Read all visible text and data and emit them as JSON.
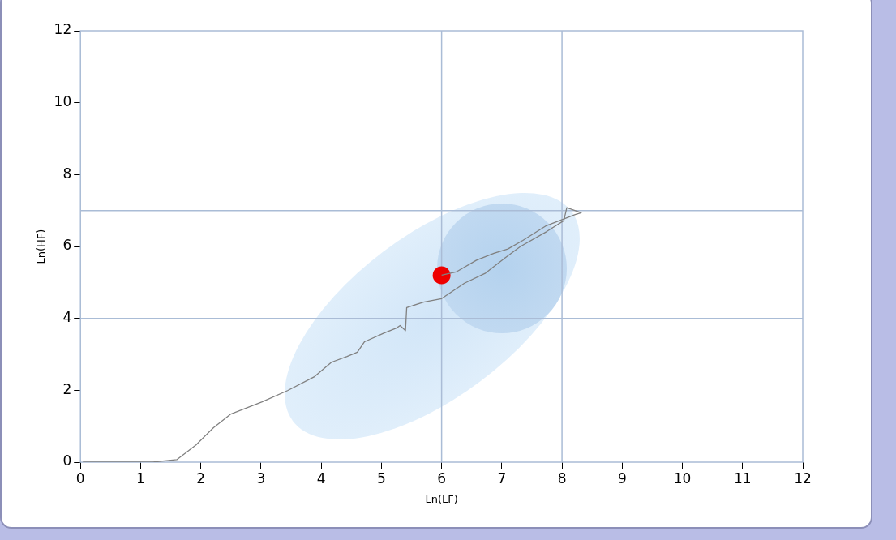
{
  "chart_data": {
    "type": "line",
    "xlabel": "Ln(LF)",
    "ylabel": "Ln(HF)",
    "xlim": [
      0,
      12
    ],
    "xticks": [
      0,
      1,
      2,
      3,
      4,
      5,
      6,
      7,
      8,
      9,
      10,
      11,
      12
    ],
    "ylim": [
      0,
      12
    ],
    "yticks": [
      0,
      2,
      4,
      6,
      8,
      10,
      12
    ],
    "grid": false,
    "legend": false,
    "marker": "none",
    "line_style": "solid",
    "ref_lines": [
      {
        "axis": "x",
        "value": 6,
        "color": "#aabcd6"
      },
      {
        "axis": "x",
        "value": 8,
        "color": "#aabcd6"
      },
      {
        "axis": "y",
        "value": 4,
        "color": "#aabcd6"
      },
      {
        "axis": "y",
        "value": 7,
        "color": "#aabcd6"
      }
    ],
    "series": [
      {
        "color": "#808080",
        "x": [
          0.04,
          1.2,
          1.6,
          1.92,
          2.21,
          2.5,
          3.01,
          3.44,
          3.88,
          4.17,
          4.43,
          4.6,
          4.72,
          5.04,
          5.25,
          5.31,
          5.4,
          5.42,
          5.7,
          6.0,
          6.38,
          6.73,
          7.06,
          7.31,
          7.74,
          8.03,
          8.08,
          8.32,
          8.22,
          7.74,
          7.35,
          7.1,
          6.87,
          6.58,
          6.24,
          6.0
        ],
        "values": [
          0,
          0,
          0.07,
          0.48,
          0.96,
          1.34,
          1.67,
          1.99,
          2.37,
          2.78,
          2.94,
          3.06,
          3.35,
          3.59,
          3.73,
          3.8,
          3.66,
          4.3,
          4.45,
          4.55,
          4.98,
          5.26,
          5.69,
          6.0,
          6.41,
          6.72,
          7.08,
          6.94,
          6.89,
          6.58,
          6.17,
          5.93,
          5.81,
          5.62,
          5.29,
          5.2
        ]
      },
      {
        "type": "scatter",
        "color": "#ee0000",
        "marker": "circle",
        "x": [
          6.0
        ],
        "values": [
          5.2
        ]
      }
    ]
  }
}
